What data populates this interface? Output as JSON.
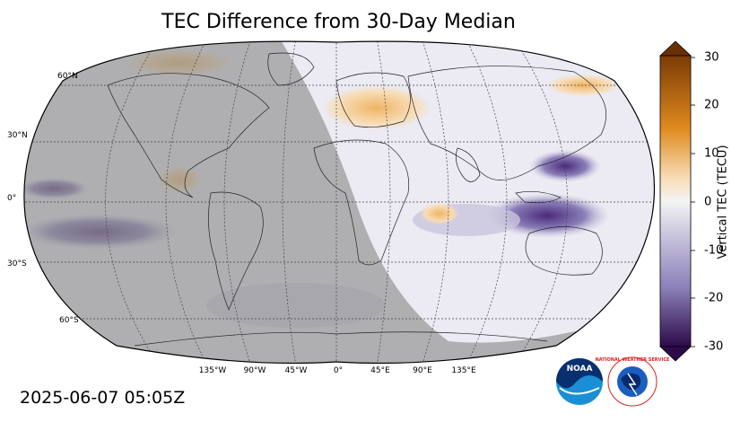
{
  "title": "TEC Difference from 30-Day Median",
  "timestamp": "2025-06-07 05:05Z",
  "map": {
    "lat_labels": [
      "60°N",
      "30°N",
      "0°",
      "30°S",
      "60°S"
    ],
    "lon_labels": [
      "135°W",
      "90°W",
      "45°W",
      "0°",
      "45°E",
      "90°E",
      "135°E"
    ]
  },
  "colorbar": {
    "label": "Vertical TEC (TECU)",
    "ticks": [
      "30",
      "20",
      "10",
      "0",
      "-10",
      "-20",
      "-30"
    ],
    "range": [
      -30,
      30
    ],
    "colors": {
      "max": "#7a3b06",
      "high": "#e08a1e",
      "mid": "#f4f4f4",
      "low": "#8a7fb8",
      "min": "#2d0a4a"
    }
  },
  "logos": {
    "noaa": "NOAA",
    "nws": "NATIONAL WEATHER SERVICE"
  }
}
